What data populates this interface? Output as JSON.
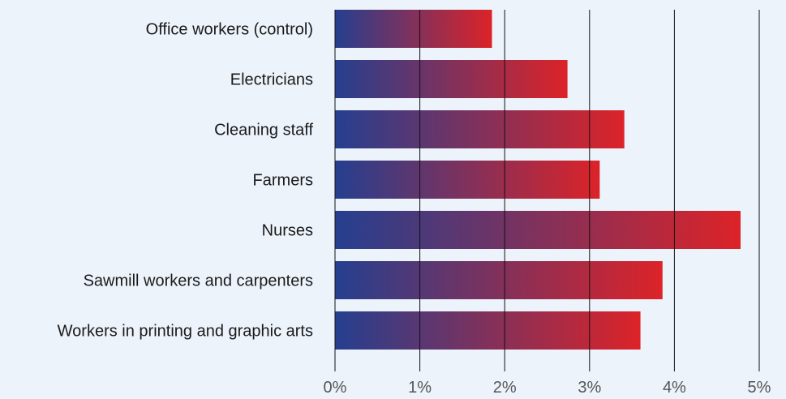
{
  "chart_data": {
    "type": "bar",
    "orientation": "horizontal",
    "categories": [
      "Office workers (control)",
      "Electricians",
      "Cleaning staff",
      "Farmers",
      "Nurses",
      "Sawmill workers and carpenters",
      "Workers in printing and graphic arts"
    ],
    "values": [
      1.85,
      2.74,
      3.41,
      3.12,
      4.78,
      3.86,
      3.6
    ],
    "xlim": [
      0,
      5
    ],
    "xticks": [
      0,
      1,
      2,
      3,
      4,
      5
    ],
    "xtick_labels": [
      "0%",
      "1%",
      "2%",
      "3%",
      "4%",
      "5%"
    ],
    "title": "",
    "xlabel": "",
    "ylabel": "",
    "grid": "vertical",
    "legend": "none",
    "bar_gradient": {
      "start": "#253f8f",
      "end": "#dc2328"
    },
    "background": "#edf3fb"
  }
}
